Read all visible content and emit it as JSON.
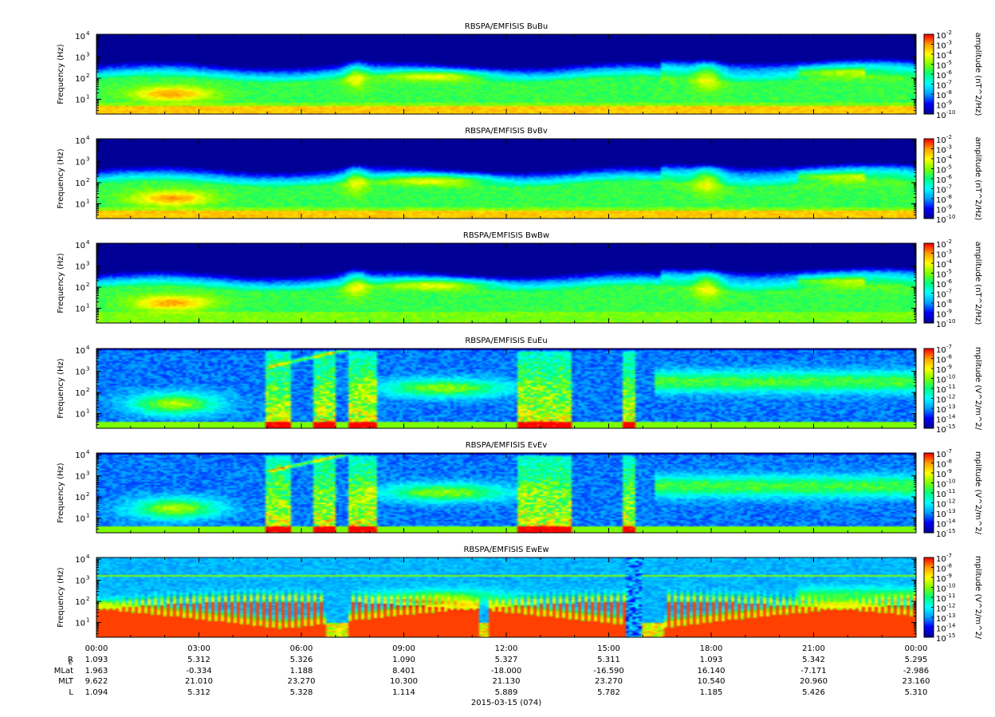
{
  "chart_data": {
    "type": "heatmap",
    "date_label": "2015-03-15 (074)",
    "x_axis": {
      "range_hours": [
        0,
        24
      ],
      "tick_labels": [
        "00:00",
        "03:00",
        "06:00",
        "09:00",
        "12:00",
        "15:00",
        "18:00",
        "21:00",
        "00:00"
      ]
    },
    "y_axis": {
      "label": "Frequency (Hz)",
      "scale": "log",
      "range_hz": [
        2,
        12000
      ],
      "ticks": [
        {
          "base": "10",
          "exp": "1"
        },
        {
          "base": "10",
          "exp": "2"
        },
        {
          "base": "10",
          "exp": "3"
        },
        {
          "base": "10",
          "exp": "4"
        }
      ]
    },
    "colormap": [
      "#000096",
      "#0000ff",
      "#00a0ff",
      "#00ffff",
      "#00ff80",
      "#80ff00",
      "#ffff00",
      "#ffa000",
      "#ff0000"
    ],
    "panels": [
      {
        "title": "RBSPA/EMFISIS  BuBu",
        "colorbar_label": "amplitude (nT^2/Hz)",
        "colorbar_exps": [
          "-2",
          "-3",
          "-4",
          "-5",
          "-6",
          "-7",
          "-8",
          "-9",
          "-10"
        ],
        "kind": "B"
      },
      {
        "title": "RBSPA/EMFISIS  BvBv",
        "colorbar_label": "amplitude (nT^2/Hz)",
        "colorbar_exps": [
          "-2",
          "-3",
          "-4",
          "-5",
          "-6",
          "-7",
          "-8",
          "-9",
          "-10"
        ],
        "kind": "B"
      },
      {
        "title": "RBSPA/EMFISIS  BwBw",
        "colorbar_label": "amplitude (nT^2/Hz)",
        "colorbar_exps": [
          "-2",
          "-3",
          "-4",
          "-5",
          "-6",
          "-7",
          "-8",
          "-9",
          "-10"
        ],
        "kind": "Bw"
      },
      {
        "title": "RBSPA/EMFISIS  EuEu",
        "colorbar_label": "mplitude (V^2/m^2/",
        "colorbar_exps": [
          "-7",
          "-8",
          "-9",
          "-10",
          "-11",
          "-12",
          "-13",
          "-14",
          "-15"
        ],
        "kind": "E"
      },
      {
        "title": "RBSPA/EMFISIS  EvEv",
        "colorbar_label": "mplitude (V^2/m^2/",
        "colorbar_exps": [
          "-7",
          "-8",
          "-9",
          "-10",
          "-11",
          "-12",
          "-13",
          "-14",
          "-15"
        ],
        "kind": "E"
      },
      {
        "title": "RBSPA/EMFISIS  EwEw",
        "colorbar_label": "mplitude (V^2/m^2/",
        "colorbar_exps": [
          "-7",
          "-8",
          "-9",
          "-10",
          "-11",
          "-12",
          "-13",
          "-14",
          "-15"
        ],
        "kind": "Ew"
      }
    ],
    "ephemeris": {
      "rows": [
        {
          "label": "R",
          "label_sub": "E",
          "values": [
            "1.093",
            "5.312",
            "5.326",
            "1.090",
            "5.327",
            "5.311",
            "1.093",
            "5.342",
            "5.295"
          ]
        },
        {
          "label": "MLat",
          "values": [
            "1.963",
            "-0.334",
            "1.188",
            "8.401",
            "-18.000",
            "-16.590",
            "16.140",
            "-7.171",
            "-2.986"
          ]
        },
        {
          "label": "MLT",
          "values": [
            "9.622",
            "21.010",
            "23.270",
            "10.300",
            "21.130",
            "23.270",
            "10.540",
            "20.960",
            "23.160"
          ]
        },
        {
          "label": "L",
          "values": [
            "1.094",
            "5.312",
            "5.328",
            "1.114",
            "5.889",
            "5.782",
            "1.185",
            "5.426",
            "5.310"
          ]
        }
      ]
    }
  }
}
